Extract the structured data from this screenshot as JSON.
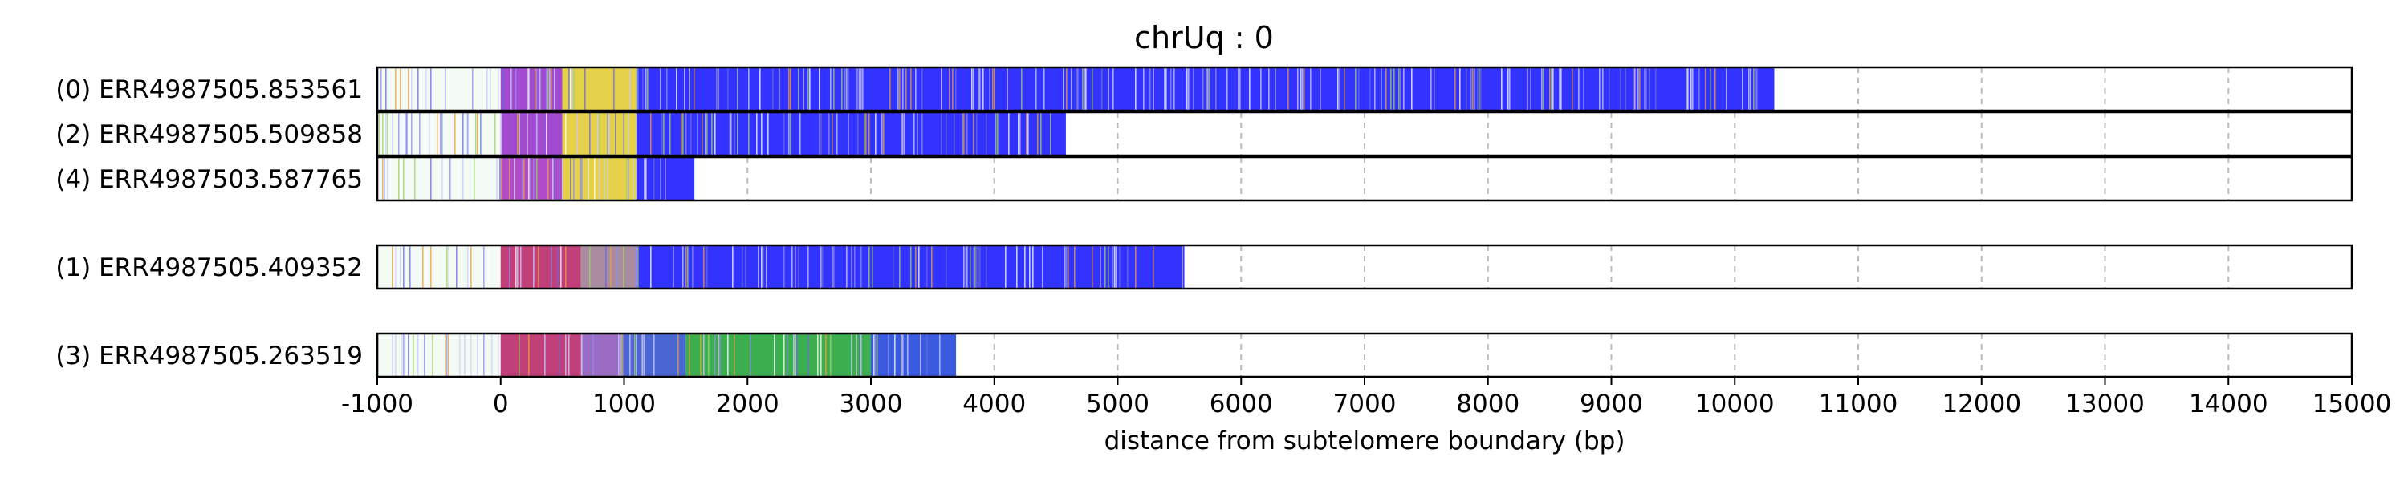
{
  "chart_data": {
    "type": "heatmap",
    "title": "chrUq : 0",
    "xlabel": "distance from subtelomere boundary (bp)",
    "xlim": [
      -1000,
      15000
    ],
    "xticks": [
      -1000,
      0,
      1000,
      2000,
      3000,
      4000,
      5000,
      6000,
      7000,
      8000,
      9000,
      10000,
      11000,
      12000,
      13000,
      14000,
      15000
    ],
    "grid": "vertical dashed",
    "groups": [
      {
        "reads": [
          {
            "label": "(0) ERR4987505.853561",
            "end": 10320,
            "segments": [
              {
                "from": -1000,
                "to": 0,
                "color": "#f4fbf4"
              },
              {
                "from": 0,
                "to": 500,
                "color": "#a24bd0"
              },
              {
                "from": 500,
                "to": 1100,
                "color": "#e6d24a"
              },
              {
                "from": 1100,
                "to": 10320,
                "color": "#3333ff"
              }
            ]
          },
          {
            "label": "(2) ERR4987505.509858",
            "end": 4580,
            "segments": [
              {
                "from": -1000,
                "to": 0,
                "color": "#f4fbf4"
              },
              {
                "from": 0,
                "to": 500,
                "color": "#a24bd0"
              },
              {
                "from": 500,
                "to": 1100,
                "color": "#e6d24a"
              },
              {
                "from": 1100,
                "to": 4580,
                "color": "#3333ff"
              }
            ]
          },
          {
            "label": "(4) ERR4987503.587765",
            "end": 1570,
            "segments": [
              {
                "from": -1000,
                "to": 0,
                "color": "#f4fbf4"
              },
              {
                "from": 0,
                "to": 500,
                "color": "#b04cc8"
              },
              {
                "from": 500,
                "to": 1100,
                "color": "#e6d24a"
              },
              {
                "from": 1100,
                "to": 1570,
                "color": "#3333ff"
              }
            ]
          }
        ]
      },
      {
        "reads": [
          {
            "label": "(1) ERR4987505.409352",
            "end": 5540,
            "segments": [
              {
                "from": -1000,
                "to": 0,
                "color": "#f4fbf4"
              },
              {
                "from": 0,
                "to": 650,
                "color": "#c0407a"
              },
              {
                "from": 650,
                "to": 1100,
                "color": "#a98ca0"
              },
              {
                "from": 1100,
                "to": 5540,
                "color": "#3333ff"
              }
            ]
          }
        ]
      },
      {
        "reads": [
          {
            "label": "(3) ERR4987505.263519",
            "end": 3690,
            "segments": [
              {
                "from": -1000,
                "to": 0,
                "color": "#f4fbf4"
              },
              {
                "from": 0,
                "to": 650,
                "color": "#c0407a"
              },
              {
                "from": 650,
                "to": 1000,
                "color": "#9a6cc4"
              },
              {
                "from": 1000,
                "to": 1500,
                "color": "#4a66d0"
              },
              {
                "from": 1500,
                "to": 3000,
                "color": "#3cae50"
              },
              {
                "from": 3000,
                "to": 3690,
                "color": "#3a5ae0"
              }
            ]
          }
        ]
      }
    ]
  }
}
